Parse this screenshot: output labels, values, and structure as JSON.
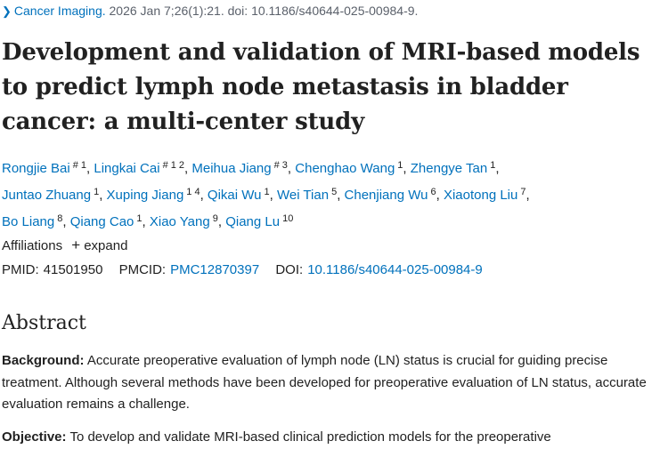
{
  "citation": {
    "journal": "Cancer Imaging.",
    "details": "2026 Jan 7;26(1):21. doi: 10.1186/s40644-025-00984-9."
  },
  "title": "Development and validation of MRI-based models to predict lymph node metastasis in bladder cancer: a multi-center study",
  "authors": [
    {
      "name": "Rongjie Bai",
      "sup": "# 1"
    },
    {
      "name": "Lingkai Cai",
      "sup": "# 1 2"
    },
    {
      "name": "Meihua Jiang",
      "sup": "# 3"
    },
    {
      "name": "Chenghao Wang",
      "sup": "1"
    },
    {
      "name": "Zhengye Tan",
      "sup": "1"
    },
    {
      "name": "Juntao Zhuang",
      "sup": "1"
    },
    {
      "name": "Xuping Jiang",
      "sup": "1 4"
    },
    {
      "name": "Qikai Wu",
      "sup": "1"
    },
    {
      "name": "Wei Tian",
      "sup": "5"
    },
    {
      "name": "Chenjiang Wu",
      "sup": "6"
    },
    {
      "name": "Xiaotong Liu",
      "sup": "7"
    },
    {
      "name": "Bo Liang",
      "sup": "8"
    },
    {
      "name": "Qiang Cao",
      "sup": "1"
    },
    {
      "name": "Xiao Yang",
      "sup": "9"
    },
    {
      "name": "Qiang Lu",
      "sup": "10"
    }
  ],
  "affiliations": {
    "label": "Affiliations",
    "expand": "expand"
  },
  "identifiers": {
    "pmid_label": "PMID:",
    "pmid": "41501950",
    "pmcid_label": "PMCID:",
    "pmcid": "PMC12870397",
    "doi_label": "DOI:",
    "doi": "10.1186/s40644-025-00984-9"
  },
  "abstract": {
    "heading": "Abstract",
    "background_label": "Background:",
    "background_text": "Accurate preoperative evaluation of lymph node (LN) status is crucial for guiding precise treatment. Although several methods have been developed for preoperative evaluation of LN status, accurate evaluation remains a challenge.",
    "objective_label": "Objective:",
    "objective_text": "To develop and validate MRI-based clinical prediction models for the preoperative"
  },
  "colors": {
    "link": "#0071bc",
    "text": "#212121",
    "muted": "#5b616b"
  },
  "icons": {
    "chevron": "chevron-right-icon",
    "plus": "plus-icon"
  }
}
